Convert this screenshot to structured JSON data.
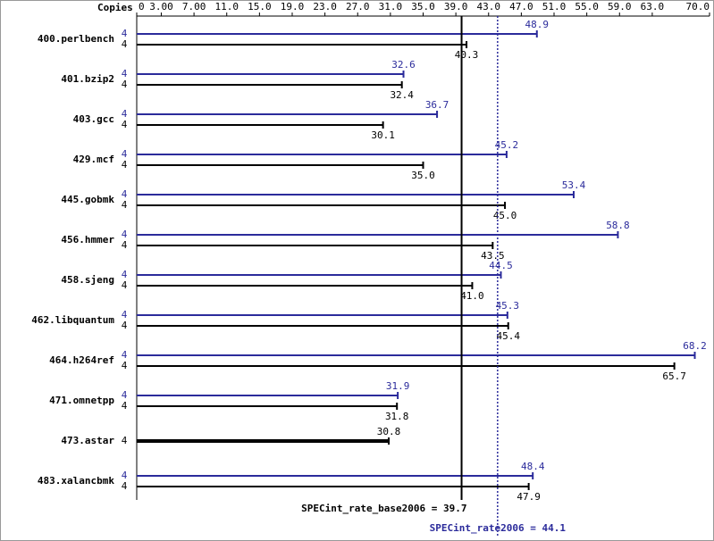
{
  "chart_data": {
    "type": "bar",
    "orientation": "horizontal",
    "copies_header": "Copies",
    "categories": [
      "400.perlbench",
      "401.bzip2",
      "403.gcc",
      "429.mcf",
      "445.gobmk",
      "456.hmmer",
      "458.sjeng",
      "462.libquantum",
      "464.h264ref",
      "471.omnetpp",
      "473.astar",
      "483.xalancbmk"
    ],
    "series": [
      {
        "color": "#2b2b9b",
        "copies": [
          4,
          4,
          4,
          4,
          4,
          4,
          4,
          4,
          4,
          4,
          null,
          4
        ],
        "values": [
          48.9,
          32.6,
          36.7,
          45.2,
          53.4,
          58.8,
          44.5,
          45.3,
          68.2,
          31.9,
          null,
          48.4
        ],
        "value_labels": [
          "48.9",
          "32.6",
          "36.7",
          "45.2",
          "53.4",
          "58.8",
          "44.5",
          "45.3",
          "68.2",
          "31.9",
          null,
          "48.4"
        ]
      },
      {
        "color": "#000000",
        "copies": [
          4,
          4,
          4,
          4,
          4,
          4,
          4,
          4,
          4,
          4,
          4,
          4
        ],
        "values": [
          40.3,
          32.4,
          30.1,
          35.0,
          45.0,
          43.5,
          41.0,
          45.4,
          65.7,
          31.8,
          30.8,
          47.9
        ],
        "value_labels": [
          "40.3",
          "32.4",
          "30.1",
          "35.0",
          "45.0",
          "43.5",
          "41.0",
          "45.4",
          "65.7",
          "31.8",
          "30.8",
          "47.9"
        ]
      }
    ],
    "xlim": [
      0,
      70
    ],
    "xticks": [
      0,
      {
        "value": 3,
        "label": "3.00"
      },
      {
        "value": 7,
        "label": "7.00"
      },
      {
        "value": 11,
        "label": "11.0"
      },
      {
        "value": 15,
        "label": "15.0"
      },
      {
        "value": 19,
        "label": "19.0"
      },
      {
        "value": 23,
        "label": "23.0"
      },
      {
        "value": 27,
        "label": "27.0"
      },
      {
        "value": 31,
        "label": "31.0"
      },
      {
        "value": 35,
        "label": "35.0"
      },
      {
        "value": 39,
        "label": "39.0"
      },
      {
        "value": 43,
        "label": "43.0"
      },
      {
        "value": 47,
        "label": "47.0"
      },
      {
        "value": 51,
        "label": "51.0"
      },
      {
        "value": 55,
        "label": "55.0"
      },
      {
        "value": 59,
        "label": "59.0"
      },
      {
        "value": 63,
        "label": "63.0"
      },
      {
        "value": 70,
        "label": "70.0"
      }
    ],
    "reference_lines": [
      {
        "label": "SPECint_rate_base2006 = 39.7",
        "value": 39.7,
        "color": "#000000",
        "style": "solid"
      },
      {
        "label": "SPECint_rate2006 = 44.1",
        "value": 44.1,
        "color": "#2b2b9b",
        "style": "dotted"
      }
    ]
  }
}
